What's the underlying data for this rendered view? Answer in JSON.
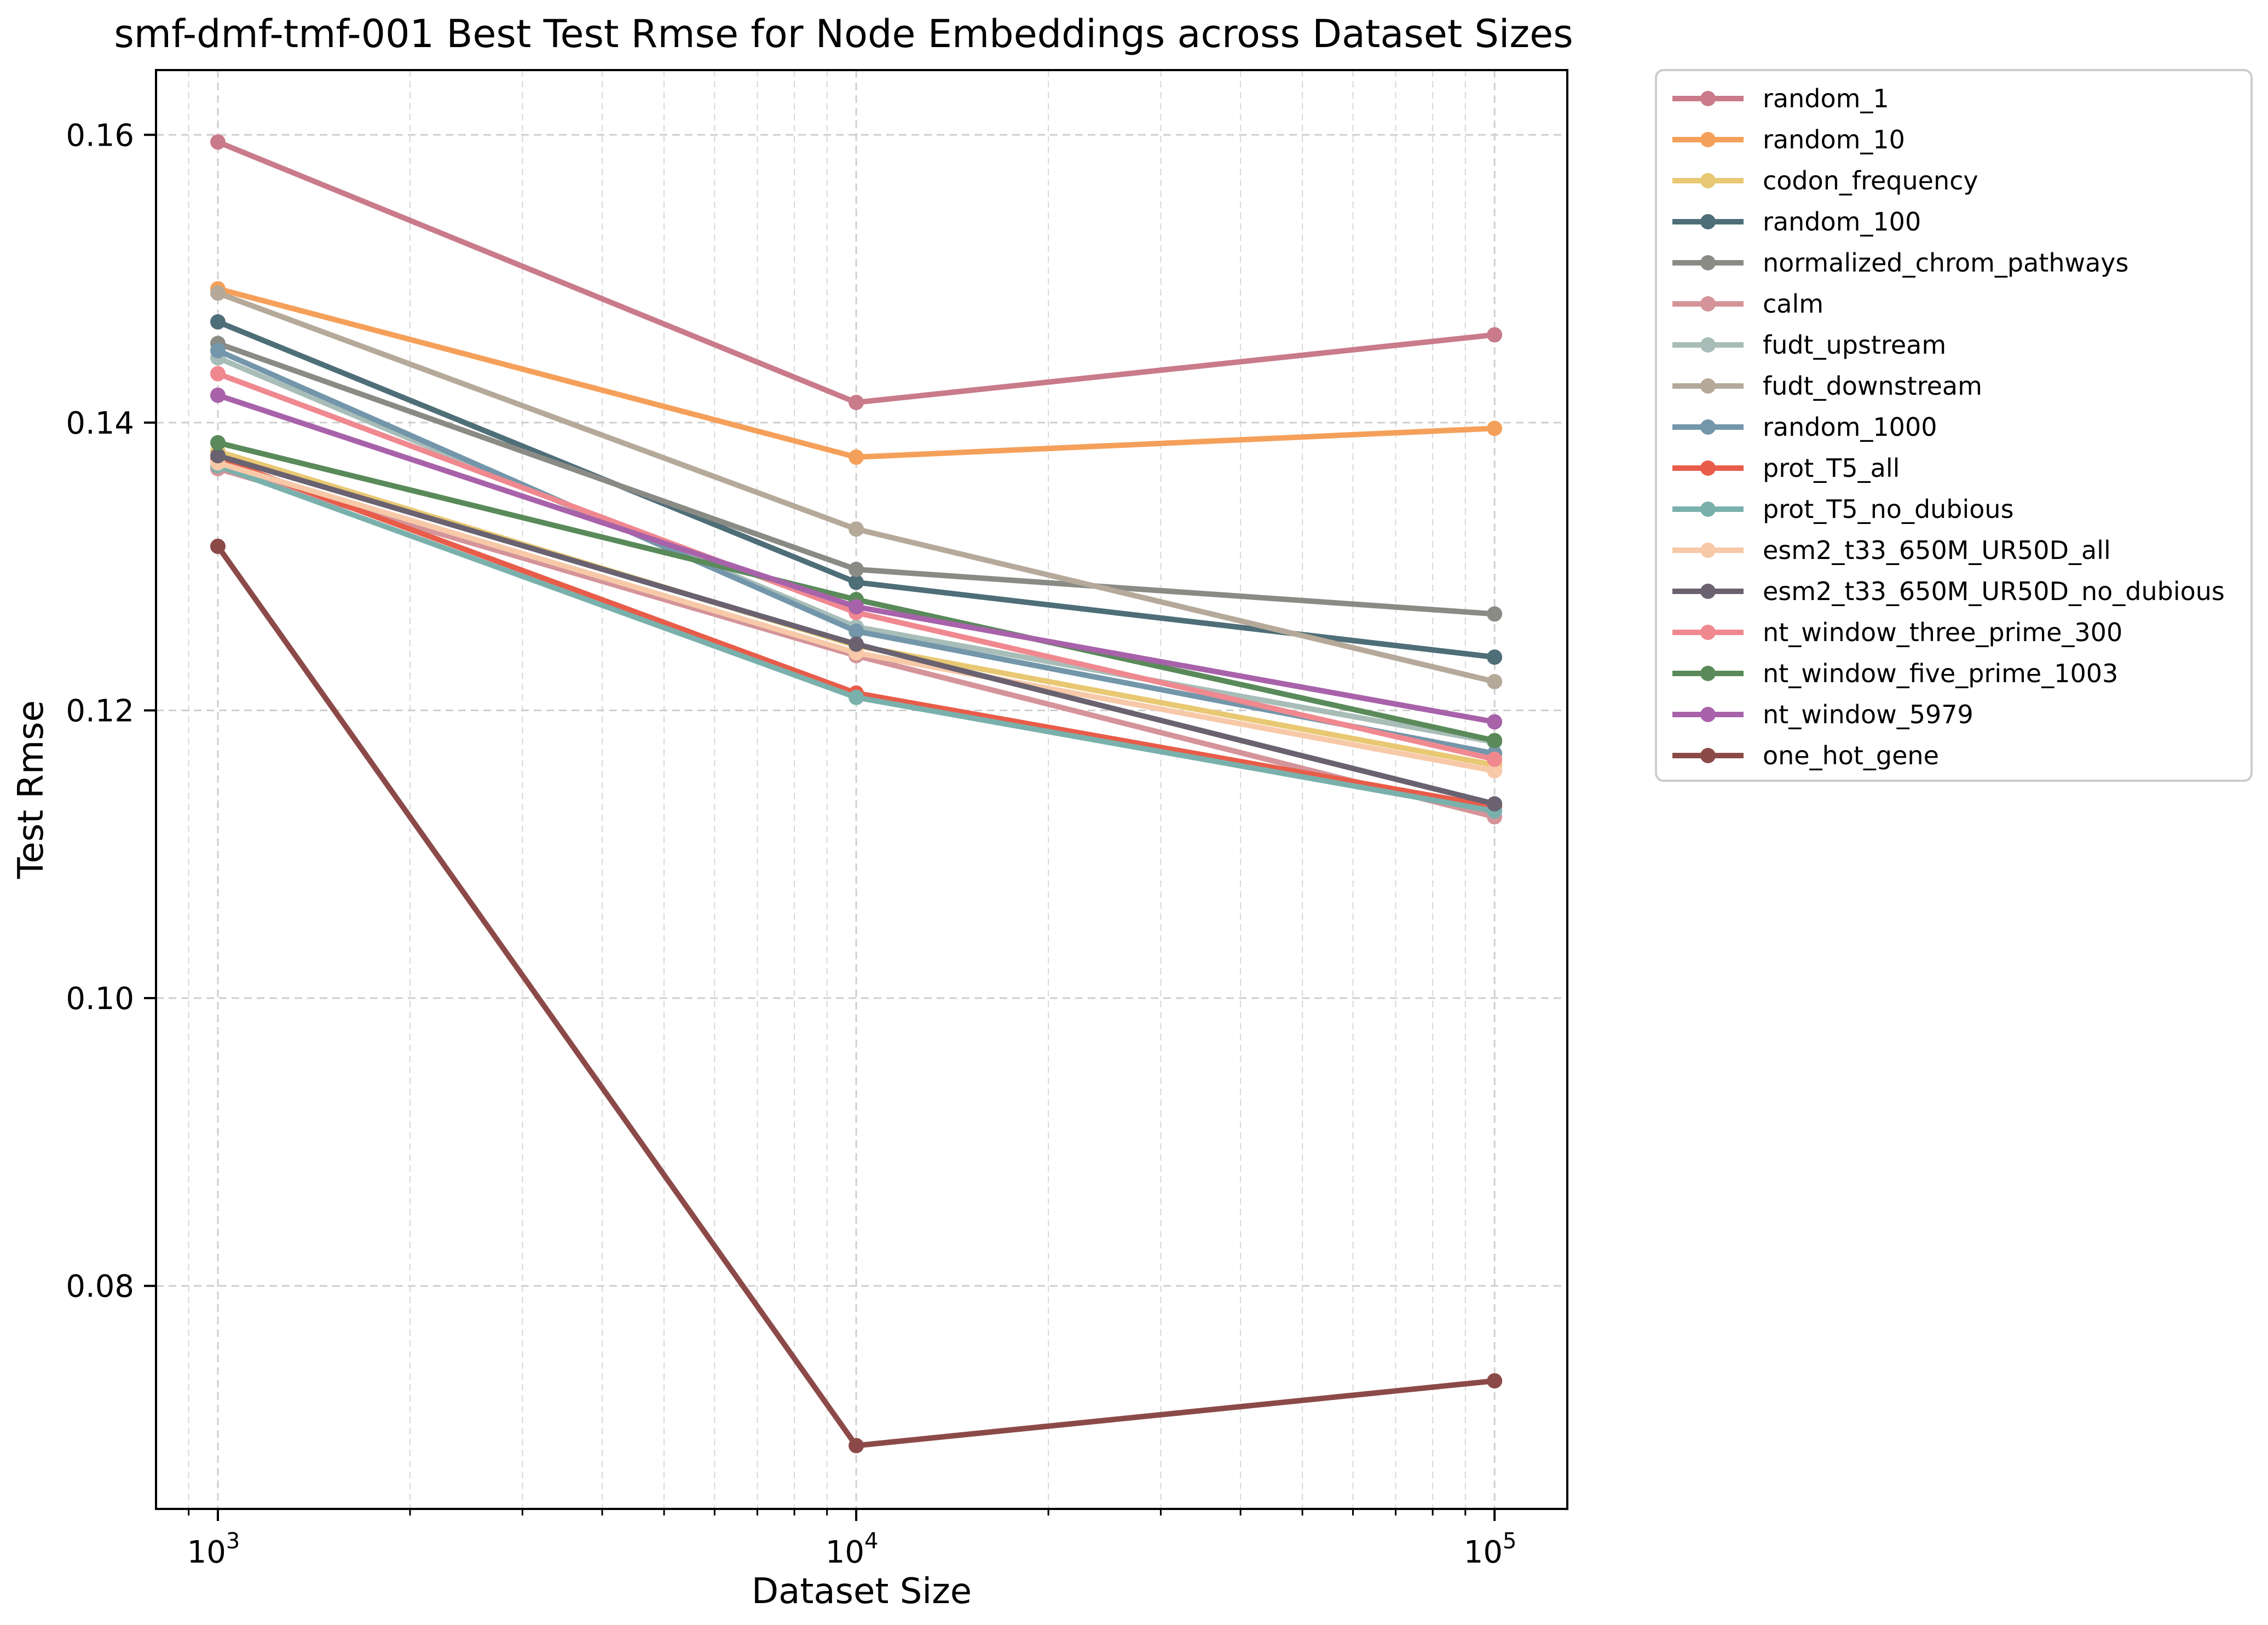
{
  "chart_data": {
    "type": "line",
    "title": "smf-dmf-tmf-001 Best Test Rmse for Node Embeddings across Dataset Sizes",
    "xlabel": "Dataset Size",
    "ylabel": "Test Rmse",
    "x_scale": "log",
    "x": [
      1000,
      10000,
      100000
    ],
    "x_tick_labels": [
      {
        "value": 1000,
        "base": "10",
        "exp": "3"
      },
      {
        "value": 10000,
        "base": "10",
        "exp": "4"
      },
      {
        "value": 100000,
        "base": "10",
        "exp": "5"
      }
    ],
    "xlim": [
      800,
      130000
    ],
    "ylim": [
      0.0645,
      0.1645
    ],
    "y_ticks": [
      0.08,
      0.1,
      0.12,
      0.14,
      0.16
    ],
    "y_tick_labels": [
      "0.08",
      "0.10",
      "0.12",
      "0.14",
      "0.16"
    ],
    "grid": true,
    "legend_position": "outside-right",
    "series": [
      {
        "name": "random_1",
        "color": "#c97b8a",
        "values": [
          0.1595,
          0.1414,
          0.1461
        ]
      },
      {
        "name": "random_10",
        "color": "#f5a05a",
        "values": [
          0.1493,
          0.1376,
          0.1396
        ]
      },
      {
        "name": "codon_frequency",
        "color": "#e8c872",
        "values": [
          0.138,
          0.1245,
          0.1162
        ]
      },
      {
        "name": "random_100",
        "color": "#4e6e78",
        "values": [
          0.147,
          0.1289,
          0.1237
        ]
      },
      {
        "name": "normalized_chrom_pathways",
        "color": "#8b8b86",
        "values": [
          0.1455,
          0.1298,
          0.1267
        ]
      },
      {
        "name": "calm",
        "color": "#d4949a",
        "values": [
          0.1368,
          0.1238,
          0.1126
        ]
      },
      {
        "name": "fudt_upstream",
        "color": "#a8bdb8",
        "values": [
          0.1445,
          0.1258,
          0.1178
        ]
      },
      {
        "name": "fudt_downstream",
        "color": "#b5a99a",
        "values": [
          0.149,
          0.1326,
          0.122
        ]
      },
      {
        "name": "random_1000",
        "color": "#7396aa",
        "values": [
          0.145,
          0.1255,
          0.117
        ]
      },
      {
        "name": "prot_T5_all",
        "color": "#e85c4a",
        "values": [
          0.1375,
          0.1212,
          0.1133
        ]
      },
      {
        "name": "prot_T5_no_dubious",
        "color": "#7ab0ac",
        "values": [
          0.137,
          0.1209,
          0.113
        ]
      },
      {
        "name": "esm2_t33_650M_UR50D_all",
        "color": "#f7c9a8",
        "values": [
          0.1372,
          0.124,
          0.1158
        ]
      },
      {
        "name": "esm2_t33_650M_UR50D_no_dubious",
        "color": "#6a6270",
        "values": [
          0.1377,
          0.1246,
          0.1135
        ]
      },
      {
        "name": "nt_window_three_prime_300",
        "color": "#f08890",
        "values": [
          0.1434,
          0.1268,
          0.1166
        ]
      },
      {
        "name": "nt_window_five_prime_1003",
        "color": "#5a8a5a",
        "values": [
          0.1386,
          0.1277,
          0.1179
        ]
      },
      {
        "name": "nt_window_5979",
        "color": "#a862aa",
        "values": [
          0.1419,
          0.1272,
          0.1192
        ]
      },
      {
        "name": "one_hot_gene",
        "color": "#8b4a48",
        "values": [
          0.1314,
          0.0689,
          0.0734
        ]
      }
    ]
  }
}
